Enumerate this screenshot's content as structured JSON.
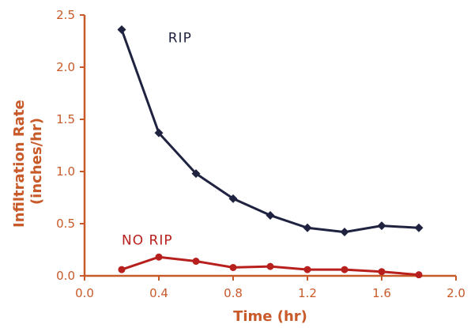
{
  "chart_data": {
    "type": "line",
    "xlabel": "Time (hr)",
    "ylabel_lines": [
      "Infiltration Rate",
      "(inches/hr)"
    ],
    "xlim": [
      0.0,
      2.0
    ],
    "ylim": [
      0.0,
      2.5
    ],
    "x_ticks": [
      "0.0",
      "0.4",
      "0.8",
      "1.2",
      "1.6",
      "2.0"
    ],
    "y_ticks": [
      "0.0",
      "0.5",
      "1.0",
      "1.5",
      "2.0",
      "2.5"
    ],
    "grid": false,
    "axis_color": "#c85a2a",
    "series": [
      {
        "name": "RIP",
        "color": "#1f2340",
        "marker": "diamond",
        "x": [
          0.2,
          0.4,
          0.6,
          0.8,
          1.0,
          1.2,
          1.4,
          1.6,
          1.8
        ],
        "y": [
          2.36,
          1.37,
          0.98,
          0.74,
          0.58,
          0.46,
          0.42,
          0.48,
          0.46
        ]
      },
      {
        "name": "NO RIP",
        "color": "#b8201e",
        "marker": "circle",
        "x": [
          0.2,
          0.4,
          0.6,
          0.8,
          1.0,
          1.2,
          1.4,
          1.6,
          1.8
        ],
        "y": [
          0.06,
          0.18,
          0.14,
          0.08,
          0.09,
          0.06,
          0.06,
          0.04,
          0.01
        ]
      }
    ]
  }
}
